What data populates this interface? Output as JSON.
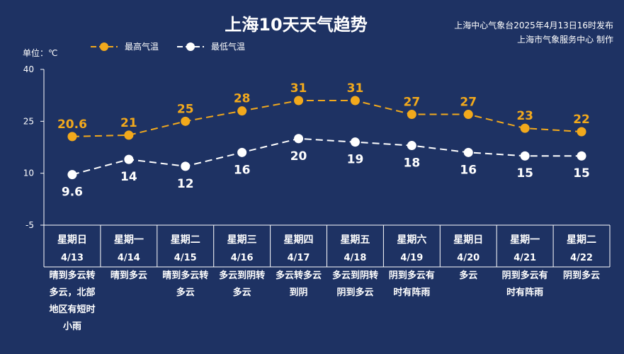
{
  "colors": {
    "background": "#1e3263",
    "high": "#f2a91c",
    "low": "#ffffff",
    "axis": "#ffffff"
  },
  "chart_data": {
    "type": "line",
    "title": "上海10天天气趋势",
    "source_lines": [
      "上海中心气象台2025年4月13日16时发布",
      "上海市气象服务中心 制作"
    ],
    "unit_label": "单位：℃",
    "ylim": [
      -5,
      40
    ],
    "yticks": [
      40,
      25,
      10,
      -5
    ],
    "legend_position": "top-left",
    "grid": false,
    "categories": [
      "4/13",
      "4/14",
      "4/15",
      "4/16",
      "4/17",
      "4/18",
      "4/19",
      "4/20",
      "4/21",
      "4/22"
    ],
    "weekdays": [
      "星期日",
      "星期一",
      "星期二",
      "星期三",
      "星期四",
      "星期五",
      "星期六",
      "星期日",
      "星期一",
      "星期二"
    ],
    "weather": [
      [
        "晴到多云转",
        "多云，北部",
        "地区有短时",
        "小雨"
      ],
      [
        "晴到多云"
      ],
      [
        "晴到多云转",
        "多云"
      ],
      [
        "多云到阴转",
        "多云"
      ],
      [
        "多云转多云",
        "到阴"
      ],
      [
        "多云到阴转",
        "阴到多云"
      ],
      [
        "阴到多云有",
        "时有阵雨"
      ],
      [
        "多云"
      ],
      [
        "阴到多云有",
        "时有阵雨"
      ],
      [
        "阴到多云"
      ]
    ],
    "series": [
      {
        "name": "最高气温",
        "values": [
          20.6,
          21,
          25,
          28,
          31,
          31,
          27,
          27,
          23,
          22
        ],
        "labels": [
          "20.6",
          "21",
          "25",
          "28",
          "31",
          "31",
          "27",
          "27",
          "23",
          "22"
        ]
      },
      {
        "name": "最低气温",
        "values": [
          9.6,
          14,
          12,
          16,
          20,
          19,
          18,
          16,
          15,
          15
        ],
        "labels": [
          "9.6",
          "14",
          "12",
          "16",
          "20",
          "19",
          "18",
          "16",
          "15",
          "15"
        ]
      }
    ]
  }
}
